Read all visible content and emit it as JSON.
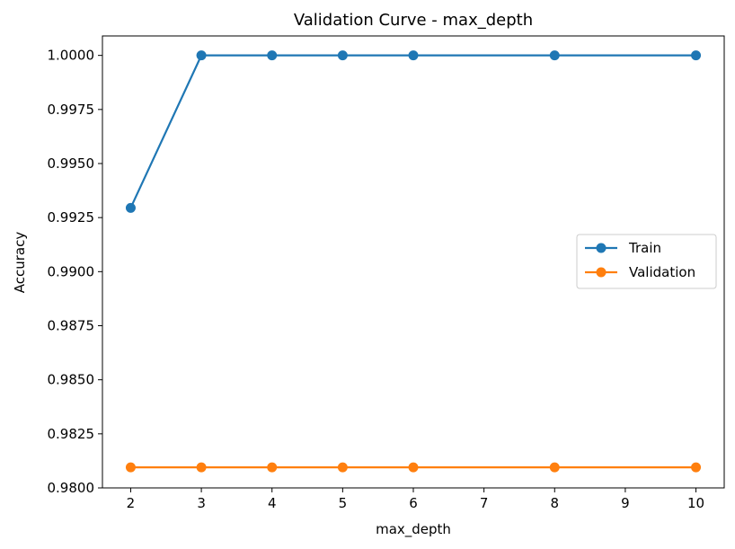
{
  "chart_data": {
    "type": "line",
    "title": "Validation Curve - max_depth",
    "xlabel": "max_depth",
    "ylabel": "Accuracy",
    "x": [
      2,
      3,
      4,
      5,
      6,
      8,
      10
    ],
    "xlim": [
      1.6,
      10.4
    ],
    "ylim": [
      0.98,
      1.0009
    ],
    "xticks": [
      "2",
      "3",
      "4",
      "5",
      "6",
      "7",
      "8",
      "9",
      "10"
    ],
    "yticks": [
      "0.9800",
      "0.9825",
      "0.9850",
      "0.9875",
      "0.9900",
      "0.9925",
      "0.9950",
      "0.9975",
      "1.0000"
    ],
    "grid": false,
    "legend_position": "center-right",
    "series": [
      {
        "name": "Train",
        "color": "#1f77b4",
        "marker": "circle",
        "values": [
          0.99295,
          1.0,
          1.0,
          1.0,
          1.0,
          1.0,
          1.0
        ]
      },
      {
        "name": "Validation",
        "color": "#ff7f0e",
        "marker": "circle",
        "values": [
          0.98095,
          0.98095,
          0.98095,
          0.98095,
          0.98095,
          0.98095,
          0.98095
        ]
      }
    ]
  }
}
